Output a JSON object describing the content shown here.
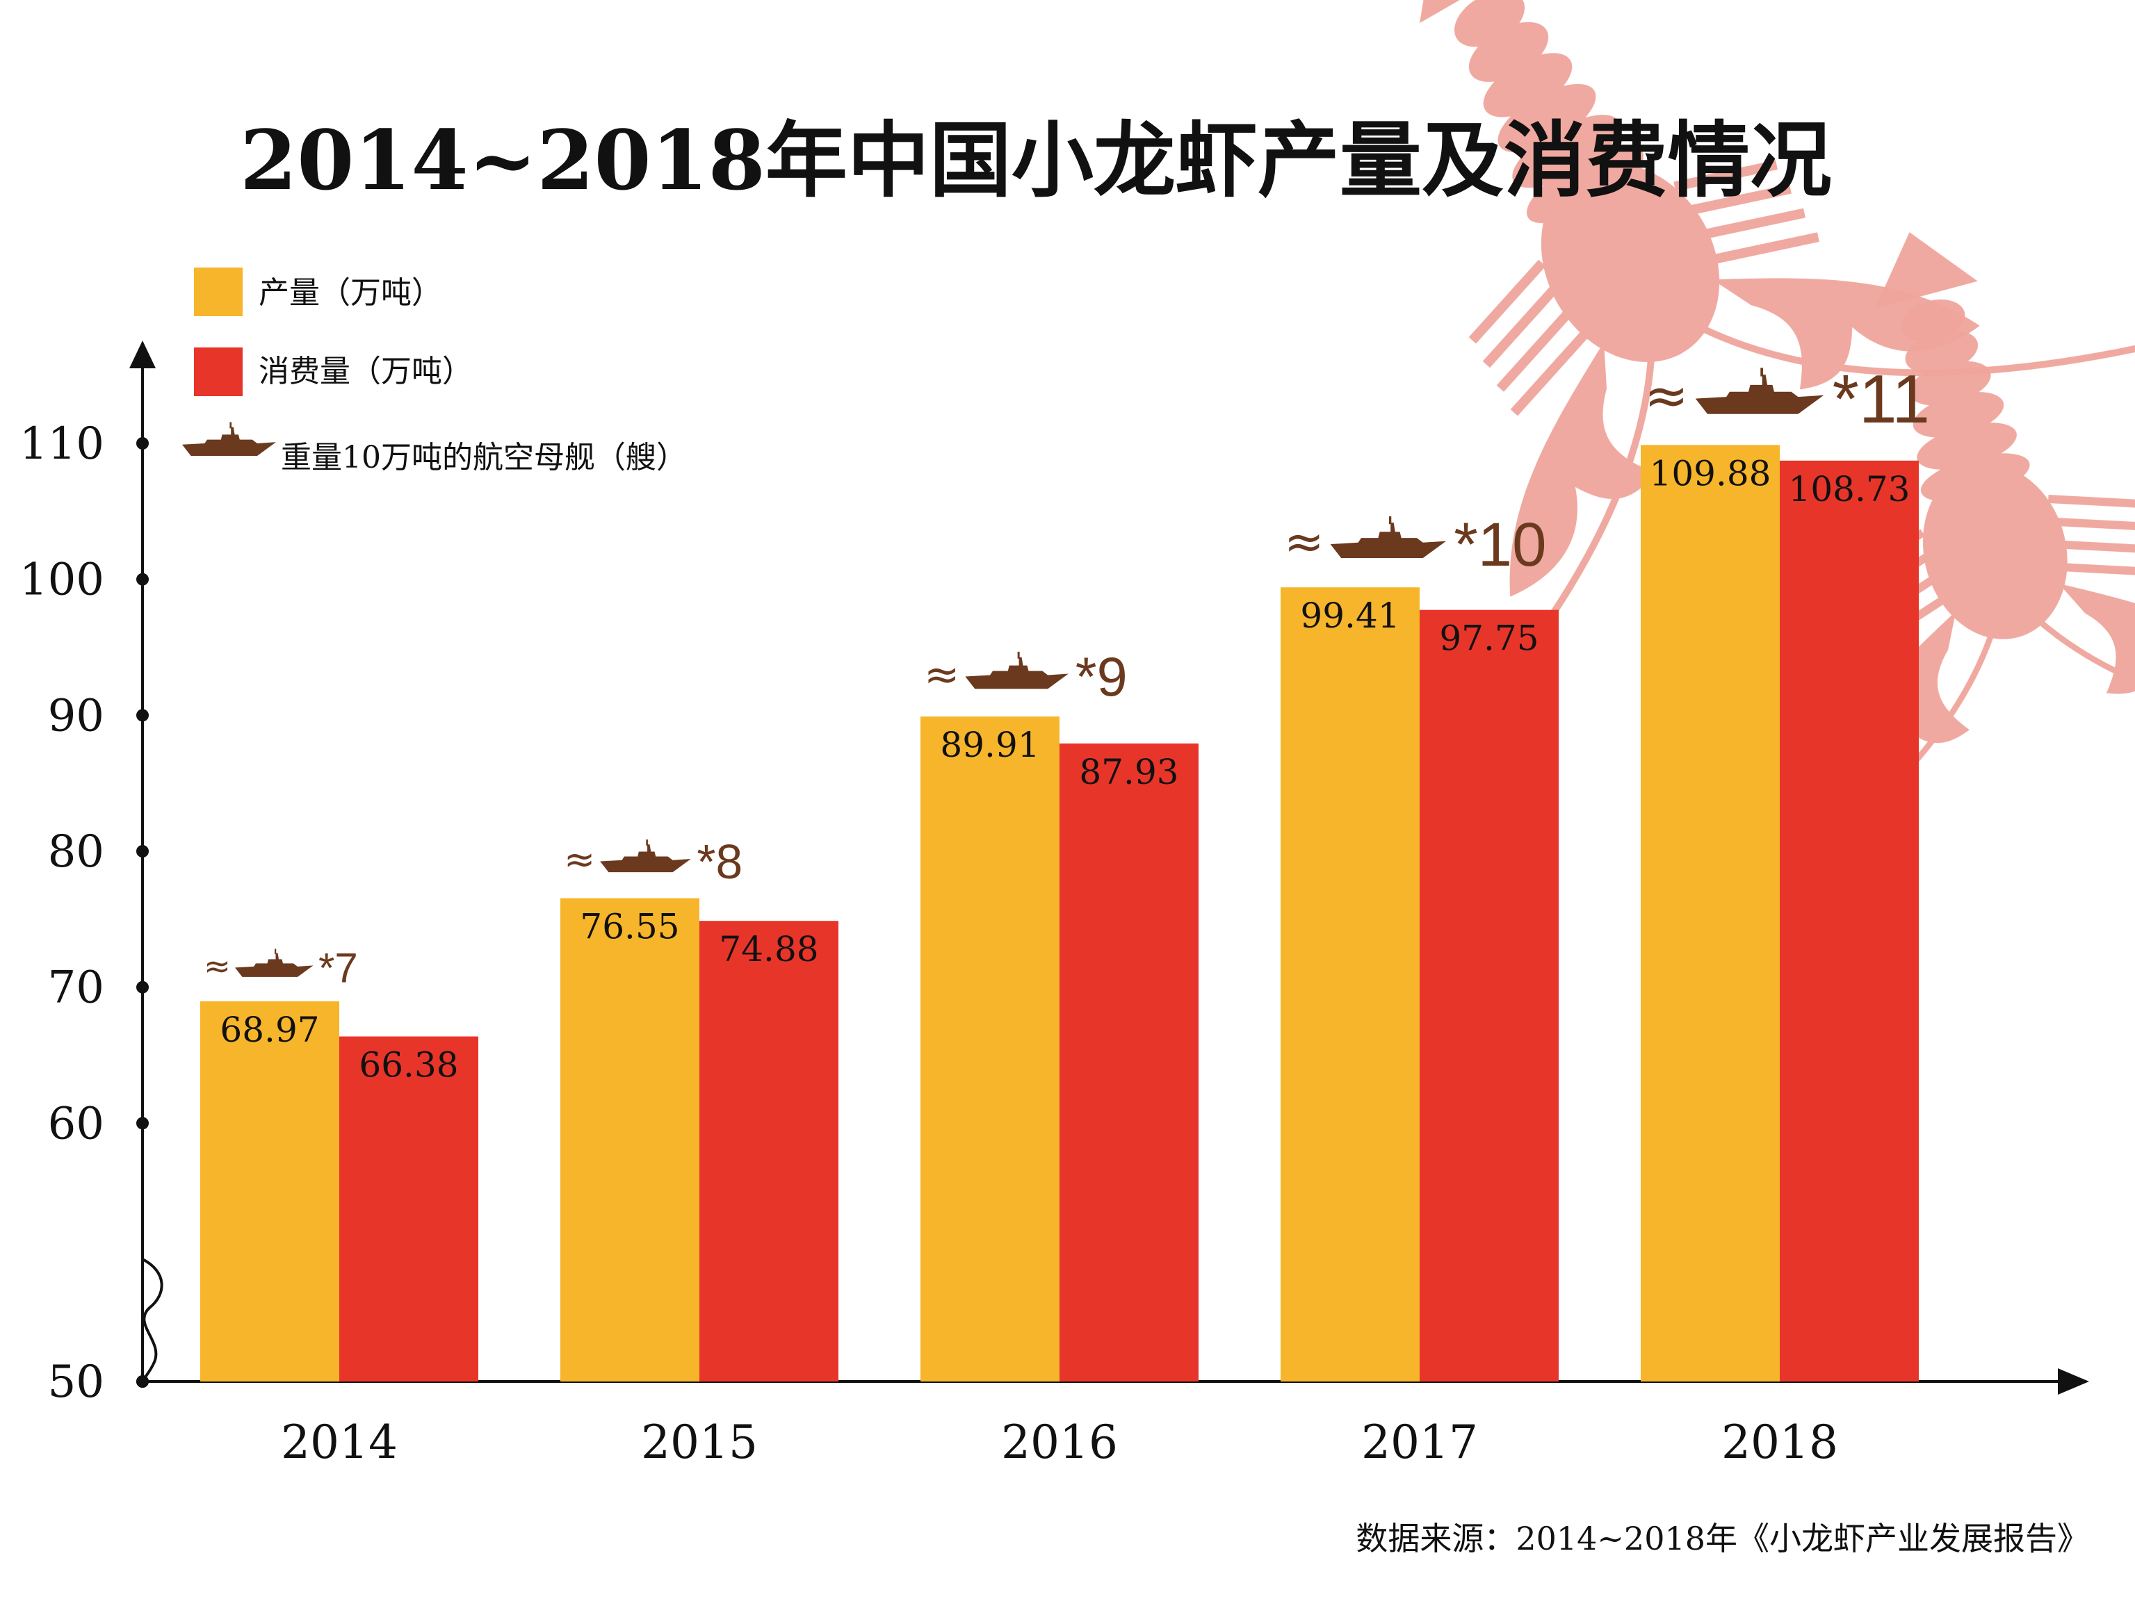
{
  "title": "2014~2018年中国小龙虾产量及消费情况",
  "legend": {
    "production": "产量（万吨）",
    "consumption": "消费量（万吨）",
    "carrier": "重量10万吨的航空母舰（艘）"
  },
  "source": "数据来源：2014~2018年《小龙虾产业发展报告》",
  "colors": {
    "production": "#F6B52B",
    "consumption": "#E8352A",
    "ship": "#6B3A1E",
    "lobster": "#EFA59B",
    "axis": "#111111"
  },
  "chart_data": {
    "type": "bar",
    "categories": [
      "2014",
      "2015",
      "2016",
      "2017",
      "2018"
    ],
    "series": [
      {
        "name": "产量（万吨）",
        "values": [
          68.97,
          76.55,
          89.91,
          99.41,
          109.88
        ],
        "labels": [
          "68.97",
          "76.55",
          "89.91",
          "99.41",
          "109.88"
        ]
      },
      {
        "name": "消费量（万吨）",
        "values": [
          66.38,
          74.88,
          87.93,
          97.75,
          108.73
        ],
        "labels": [
          "66.38",
          "74.88",
          "87.93",
          "97.75",
          "108.73"
        ]
      }
    ],
    "carriers": [
      7,
      8,
      9,
      10,
      11
    ],
    "carrier_labels": [
      "≈",
      "*7",
      "*8",
      "*9",
      "*10",
      "*11"
    ],
    "yticks": [
      "0",
      "50",
      "60",
      "70",
      "80",
      "90",
      "100",
      "110"
    ],
    "ylim": [
      50,
      115
    ],
    "axis_break": true,
    "grid": false,
    "legend_position": "top-left"
  }
}
